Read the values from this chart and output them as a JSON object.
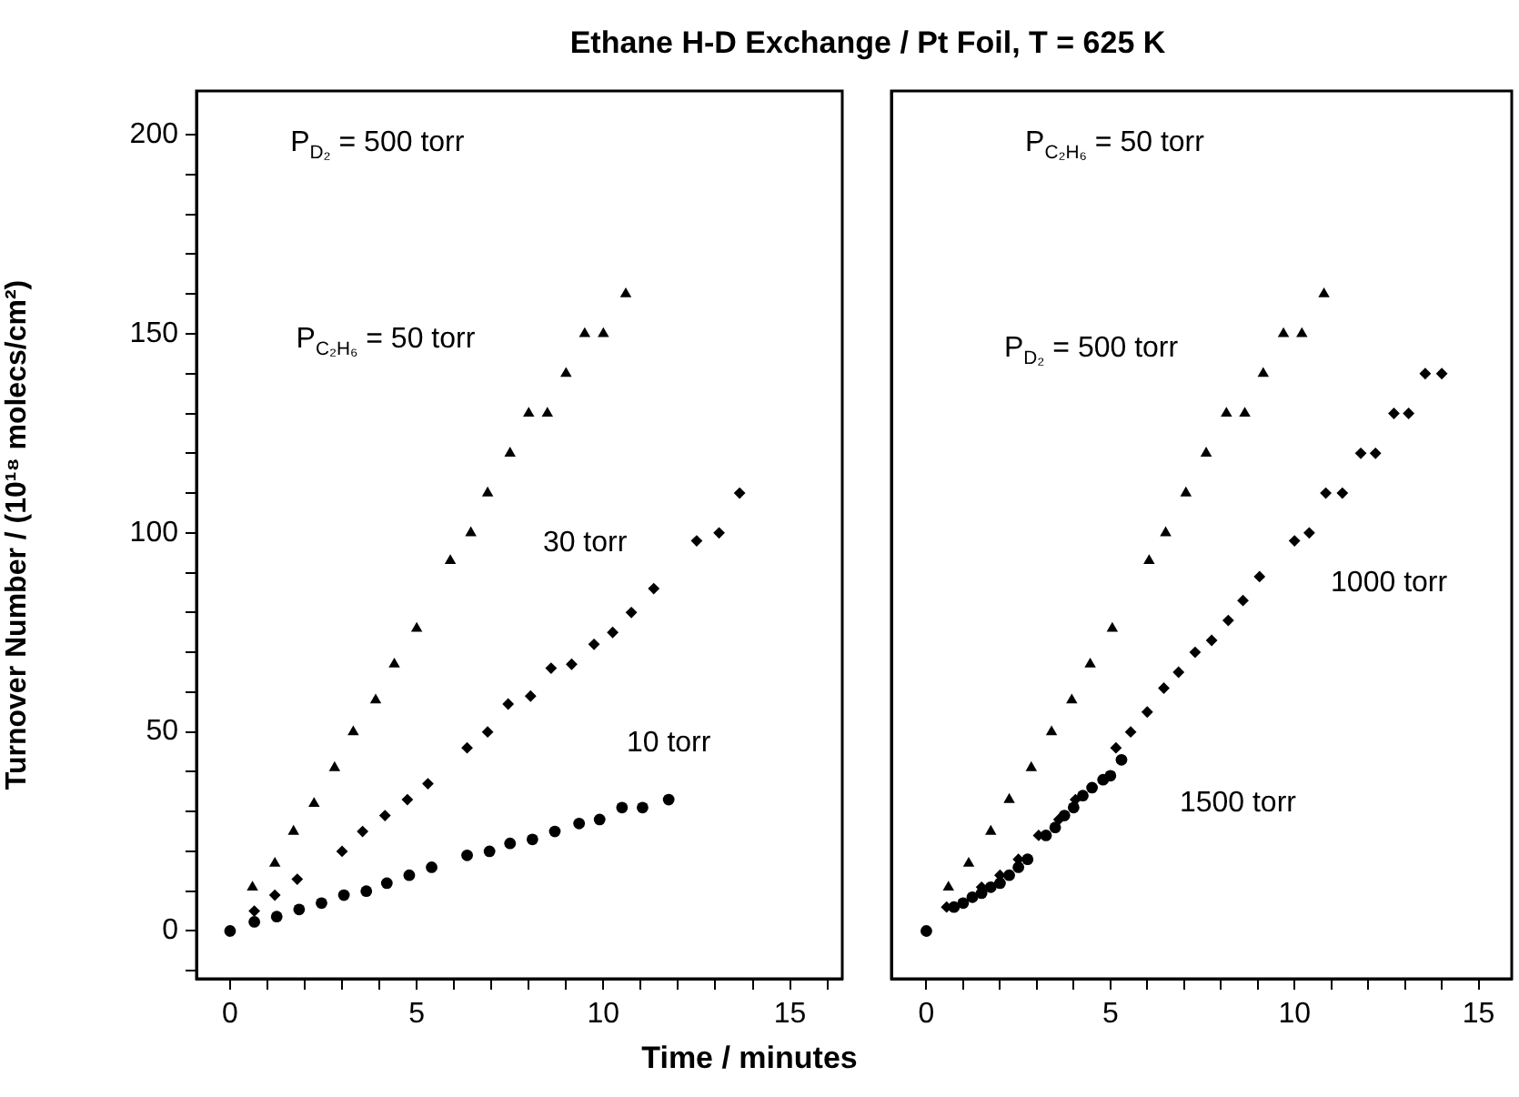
{
  "chart_data": [
    {
      "type": "scatter",
      "title": "Ethane H-D Exchange / Pt Foil, T = 625 K",
      "xlabel": "Time / minutes",
      "ylabel": "Turnover Number / (10¹⁸ molecs/cm²)",
      "xlim": [
        -0.9,
        16.4
      ],
      "ylim": [
        -12,
        211
      ],
      "xticks": [
        0,
        {
          "value": 1,
          "label": null
        },
        {
          "value": 2,
          "label": null
        },
        {
          "value": 3,
          "label": null
        },
        {
          "value": 4,
          "label": null
        },
        5,
        {
          "value": 6,
          "label": null
        },
        {
          "value": 7,
          "label": null
        },
        {
          "value": 8,
          "label": null
        },
        {
          "value": 9,
          "label": null
        },
        10,
        {
          "value": 11,
          "label": null
        },
        {
          "value": 12,
          "label": null
        },
        {
          "value": 13,
          "label": null
        },
        {
          "value": 14,
          "label": null
        },
        15,
        {
          "value": 16,
          "label": null
        }
      ],
      "yticks": [
        {
          "value": -10,
          "label": null
        },
        0,
        {
          "value": 10,
          "label": null
        },
        {
          "value": 20,
          "label": null
        },
        {
          "value": 30,
          "label": null
        },
        {
          "value": 40,
          "label": null
        },
        50,
        {
          "value": 60,
          "label": null
        },
        {
          "value": 70,
          "label": null
        },
        {
          "value": 80,
          "label": null
        },
        {
          "value": 90,
          "label": null
        },
        100,
        {
          "value": 110,
          "label": null
        },
        {
          "value": 120,
          "label": null
        },
        {
          "value": 130,
          "label": null
        },
        {
          "value": 140,
          "label": null
        },
        150,
        {
          "value": 160,
          "label": null
        },
        {
          "value": 170,
          "label": null
        },
        {
          "value": 180,
          "label": null
        },
        {
          "value": 190,
          "label": null
        },
        200
      ],
      "grid": false,
      "legend": false,
      "annotations": [
        "P$_{D₂}$ = 500 torr"
      ],
      "series": [
        {
          "name": "P$_{C₂H₆}$ = 50 torr",
          "color": "#000000",
          "marker": "triangle",
          "x": [
            0.6,
            1.2,
            1.7,
            2.25,
            2.8,
            3.3,
            3.9,
            4.4,
            5.0,
            5.9,
            6.45,
            6.9,
            7.5,
            8.0,
            8.5,
            9.0,
            9.5,
            10.0,
            10.6
          ],
          "values": [
            11,
            17,
            25,
            32,
            41,
            50,
            58,
            67,
            76,
            93,
            100,
            110,
            120,
            130,
            130,
            140,
            150,
            150,
            160
          ]
        },
        {
          "name": "30 torr",
          "color": "#000000",
          "marker": "diamond",
          "x": [
            0.65,
            1.2,
            1.8,
            3.0,
            3.55,
            4.15,
            4.75,
            5.3,
            6.35,
            6.9,
            7.45,
            8.05,
            8.6,
            9.15,
            9.75,
            10.25,
            10.75,
            11.35,
            12.5,
            13.1,
            13.65
          ],
          "values": [
            5,
            9,
            13,
            20,
            25,
            29,
            33,
            37,
            46,
            50,
            57,
            59,
            66,
            67,
            72,
            75,
            80,
            86,
            98,
            100,
            110
          ]
        },
        {
          "name": "10 torr",
          "color": "#000000",
          "marker": "circle",
          "x": [
            0,
            0.65,
            1.25,
            1.85,
            2.45,
            3.05,
            3.65,
            4.2,
            4.8,
            5.4,
            6.35,
            6.95,
            7.5,
            8.1,
            8.7,
            9.35,
            9.9,
            10.5,
            11.05,
            11.75
          ],
          "values": [
            0,
            2.3,
            3.6,
            5.4,
            7,
            9,
            10,
            12,
            14,
            16,
            19,
            20,
            22,
            23,
            25,
            27,
            28,
            31,
            31,
            33
          ]
        }
      ]
    },
    {
      "type": "scatter",
      "tick_labels": "x",
      "xlim": [
        -0.95,
        15.9
      ],
      "ylim": [
        -12,
        211
      ],
      "xticks": [
        0,
        {
          "value": 1,
          "label": null
        },
        {
          "value": 2,
          "label": null
        },
        {
          "value": 3,
          "label": null
        },
        {
          "value": 4,
          "label": null
        },
        5,
        {
          "value": 6,
          "label": null
        },
        {
          "value": 7,
          "label": null
        },
        {
          "value": 8,
          "label": null
        },
        {
          "value": 9,
          "label": null
        },
        10,
        {
          "value": 11,
          "label": null
        },
        {
          "value": 12,
          "label": null
        },
        {
          "value": 13,
          "label": null
        },
        {
          "value": 14,
          "label": null
        },
        15
      ],
      "yticks": [
        0,
        50,
        100,
        150,
        200
      ],
      "grid": false,
      "legend": false,
      "annotations": [
        "P$_{C₂H₆}$ = 50 torr"
      ],
      "series": [
        {
          "name": "P$_{D₂}$ = 500 torr",
          "color": "#000000",
          "marker": "triangle",
          "x": [
            0.6,
            1.15,
            1.75,
            2.25,
            2.85,
            3.4,
            3.95,
            4.45,
            5.05,
            6.05,
            6.5,
            7.05,
            7.6,
            8.15,
            8.65,
            9.15,
            9.7,
            10.2,
            10.8
          ],
          "values": [
            11,
            17,
            25,
            33,
            41,
            50,
            58,
            67,
            76,
            93,
            100,
            110,
            120,
            130,
            130,
            140,
            150,
            150,
            160
          ]
        },
        {
          "name": "1000 torr",
          "color": "#000000",
          "marker": "diamond",
          "x": [
            0.55,
            1.0,
            1.5,
            2.0,
            2.5,
            3.05,
            3.6,
            4.05,
            4.55,
            5.15,
            5.55,
            6.0,
            6.45,
            6.85,
            7.3,
            7.75,
            8.2,
            8.6,
            9.05,
            10.0,
            10.4,
            10.85,
            11.3,
            11.8,
            12.2,
            12.7,
            13.1,
            13.55,
            14.0
          ],
          "values": [
            6,
            null,
            11,
            14,
            18,
            24,
            28,
            33,
            null,
            46,
            50,
            55,
            61,
            65,
            70,
            73,
            78,
            83,
            89,
            98,
            100,
            110,
            110,
            120,
            120,
            130,
            130,
            140,
            140
          ]
        },
        {
          "name": "1500 torr",
          "color": "#000000",
          "marker": "circle",
          "x": [
            0,
            0.75,
            1.0,
            1.25,
            1.5,
            1.75,
            2.0,
            2.25,
            2.5,
            2.75,
            3.25,
            3.5,
            3.75,
            4.0,
            4.25,
            4.5,
            4.8,
            5.0,
            5.3
          ],
          "values": [
            0,
            6,
            7,
            8.5,
            9.5,
            11,
            12,
            14,
            16,
            18,
            24,
            26,
            29,
            31,
            34,
            36,
            38,
            39,
            43
          ]
        }
      ]
    }
  ]
}
